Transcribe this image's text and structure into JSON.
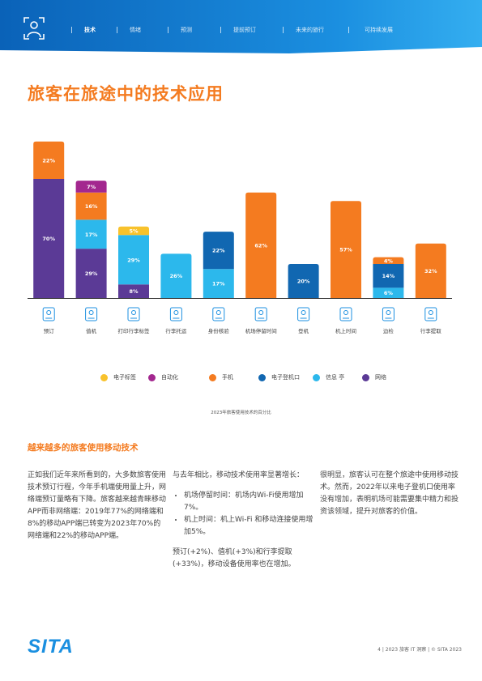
{
  "header": {
    "nav": [
      {
        "label": "技术",
        "active": true
      },
      {
        "label": "情绪",
        "active": false
      },
      {
        "label": "预测",
        "active": false
      },
      {
        "label": "提前预订",
        "active": false
      },
      {
        "label": "未来的旅行",
        "active": false
      },
      {
        "label": "可持续发展",
        "active": false
      }
    ]
  },
  "page_title": "旅客在旅途中的技术应用",
  "colors": {
    "电子标签": "#f8c22c",
    "自动化": "#a3278f",
    "手机": "#f47b20",
    "电子登机口": "#1167b1",
    "信息亭": "#2cb8ec",
    "网络": "#5b3a96"
  },
  "chart_data": {
    "type": "bar",
    "stacked": true,
    "caption": "2023年旅客使用技术的百分比",
    "categories": [
      "预订",
      "值机",
      "打印行李标签",
      "行李托运",
      "身份核验",
      "机场停留时间",
      "登机",
      "机上时间",
      "边检",
      "行李提取"
    ],
    "legend": [
      {
        "name": "电子标签",
        "color": "#f8c22c"
      },
      {
        "name": "自动化",
        "color": "#a3278f"
      },
      {
        "name": "手机",
        "color": "#f47b20"
      },
      {
        "name": "电子登机口",
        "color": "#1167b1"
      },
      {
        "name": "信息 亭",
        "color": "#2cb8ec"
      },
      {
        "name": "网络",
        "color": "#5b3a96"
      }
    ],
    "stacks": [
      [
        {
          "s": "网络",
          "v": 70
        },
        {
          "s": "手机",
          "v": 22
        }
      ],
      [
        {
          "s": "网络",
          "v": 29
        },
        {
          "s": "信息亭",
          "v": 17
        },
        {
          "s": "手机",
          "v": 16
        },
        {
          "s": "自动化",
          "v": 7
        }
      ],
      [
        {
          "s": "网络",
          "v": 8
        },
        {
          "s": "信息亭",
          "v": 29
        },
        {
          "s": "电子标签",
          "v": 5
        }
      ],
      [
        {
          "s": "信息亭",
          "v": 26
        }
      ],
      [
        {
          "s": "信息亭",
          "v": 17
        },
        {
          "s": "电子登机口",
          "v": 22
        }
      ],
      [
        {
          "s": "手机",
          "v": 62
        }
      ],
      [
        {
          "s": "电子登机口",
          "v": 20
        }
      ],
      [
        {
          "s": "手机",
          "v": 57
        }
      ],
      [
        {
          "s": "信息亭",
          "v": 6
        },
        {
          "s": "电子登机口",
          "v": 14
        },
        {
          "s": "手机",
          "v": 4
        }
      ],
      [
        {
          "s": "手机",
          "v": 32
        }
      ]
    ]
  },
  "section": {
    "heading": "越来越多的旅客使用移动技术",
    "col1": "正如我们近年来所看到的，大多数旅客使用技术预订行程，今年手机端使用量上升，网络端预订量略有下降。旅客越来越青睐移动APP而非网络端：2019年77%的网络端和8%的移动APP端已转变为2023年70%的网络端和22%的移动APP端。",
    "col2_intro": "与去年相比，移动技术使用率显著增长：",
    "col2_bullets": [
      "机场停留时间：机场内Wi-Fi使用增加7%。",
      "机上时间：机上Wi-Fi 和移动连接使用增加5%。"
    ],
    "col2_outro": "预订(+2%)、值机(+3%)和行李提取(+33%)，移动设备使用率也在增加。",
    "col3": "很明显，旅客认可在整个旅途中使用移动技术。然而，2022年以来电子登机口使用率没有增加，表明机场可能需要集中精力和投资该领域，提升对旅客的价值。"
  },
  "footer": {
    "logo": "SITA",
    "text": "4 | 2023 旅客 IT 洞察 | © SITA 2023"
  }
}
